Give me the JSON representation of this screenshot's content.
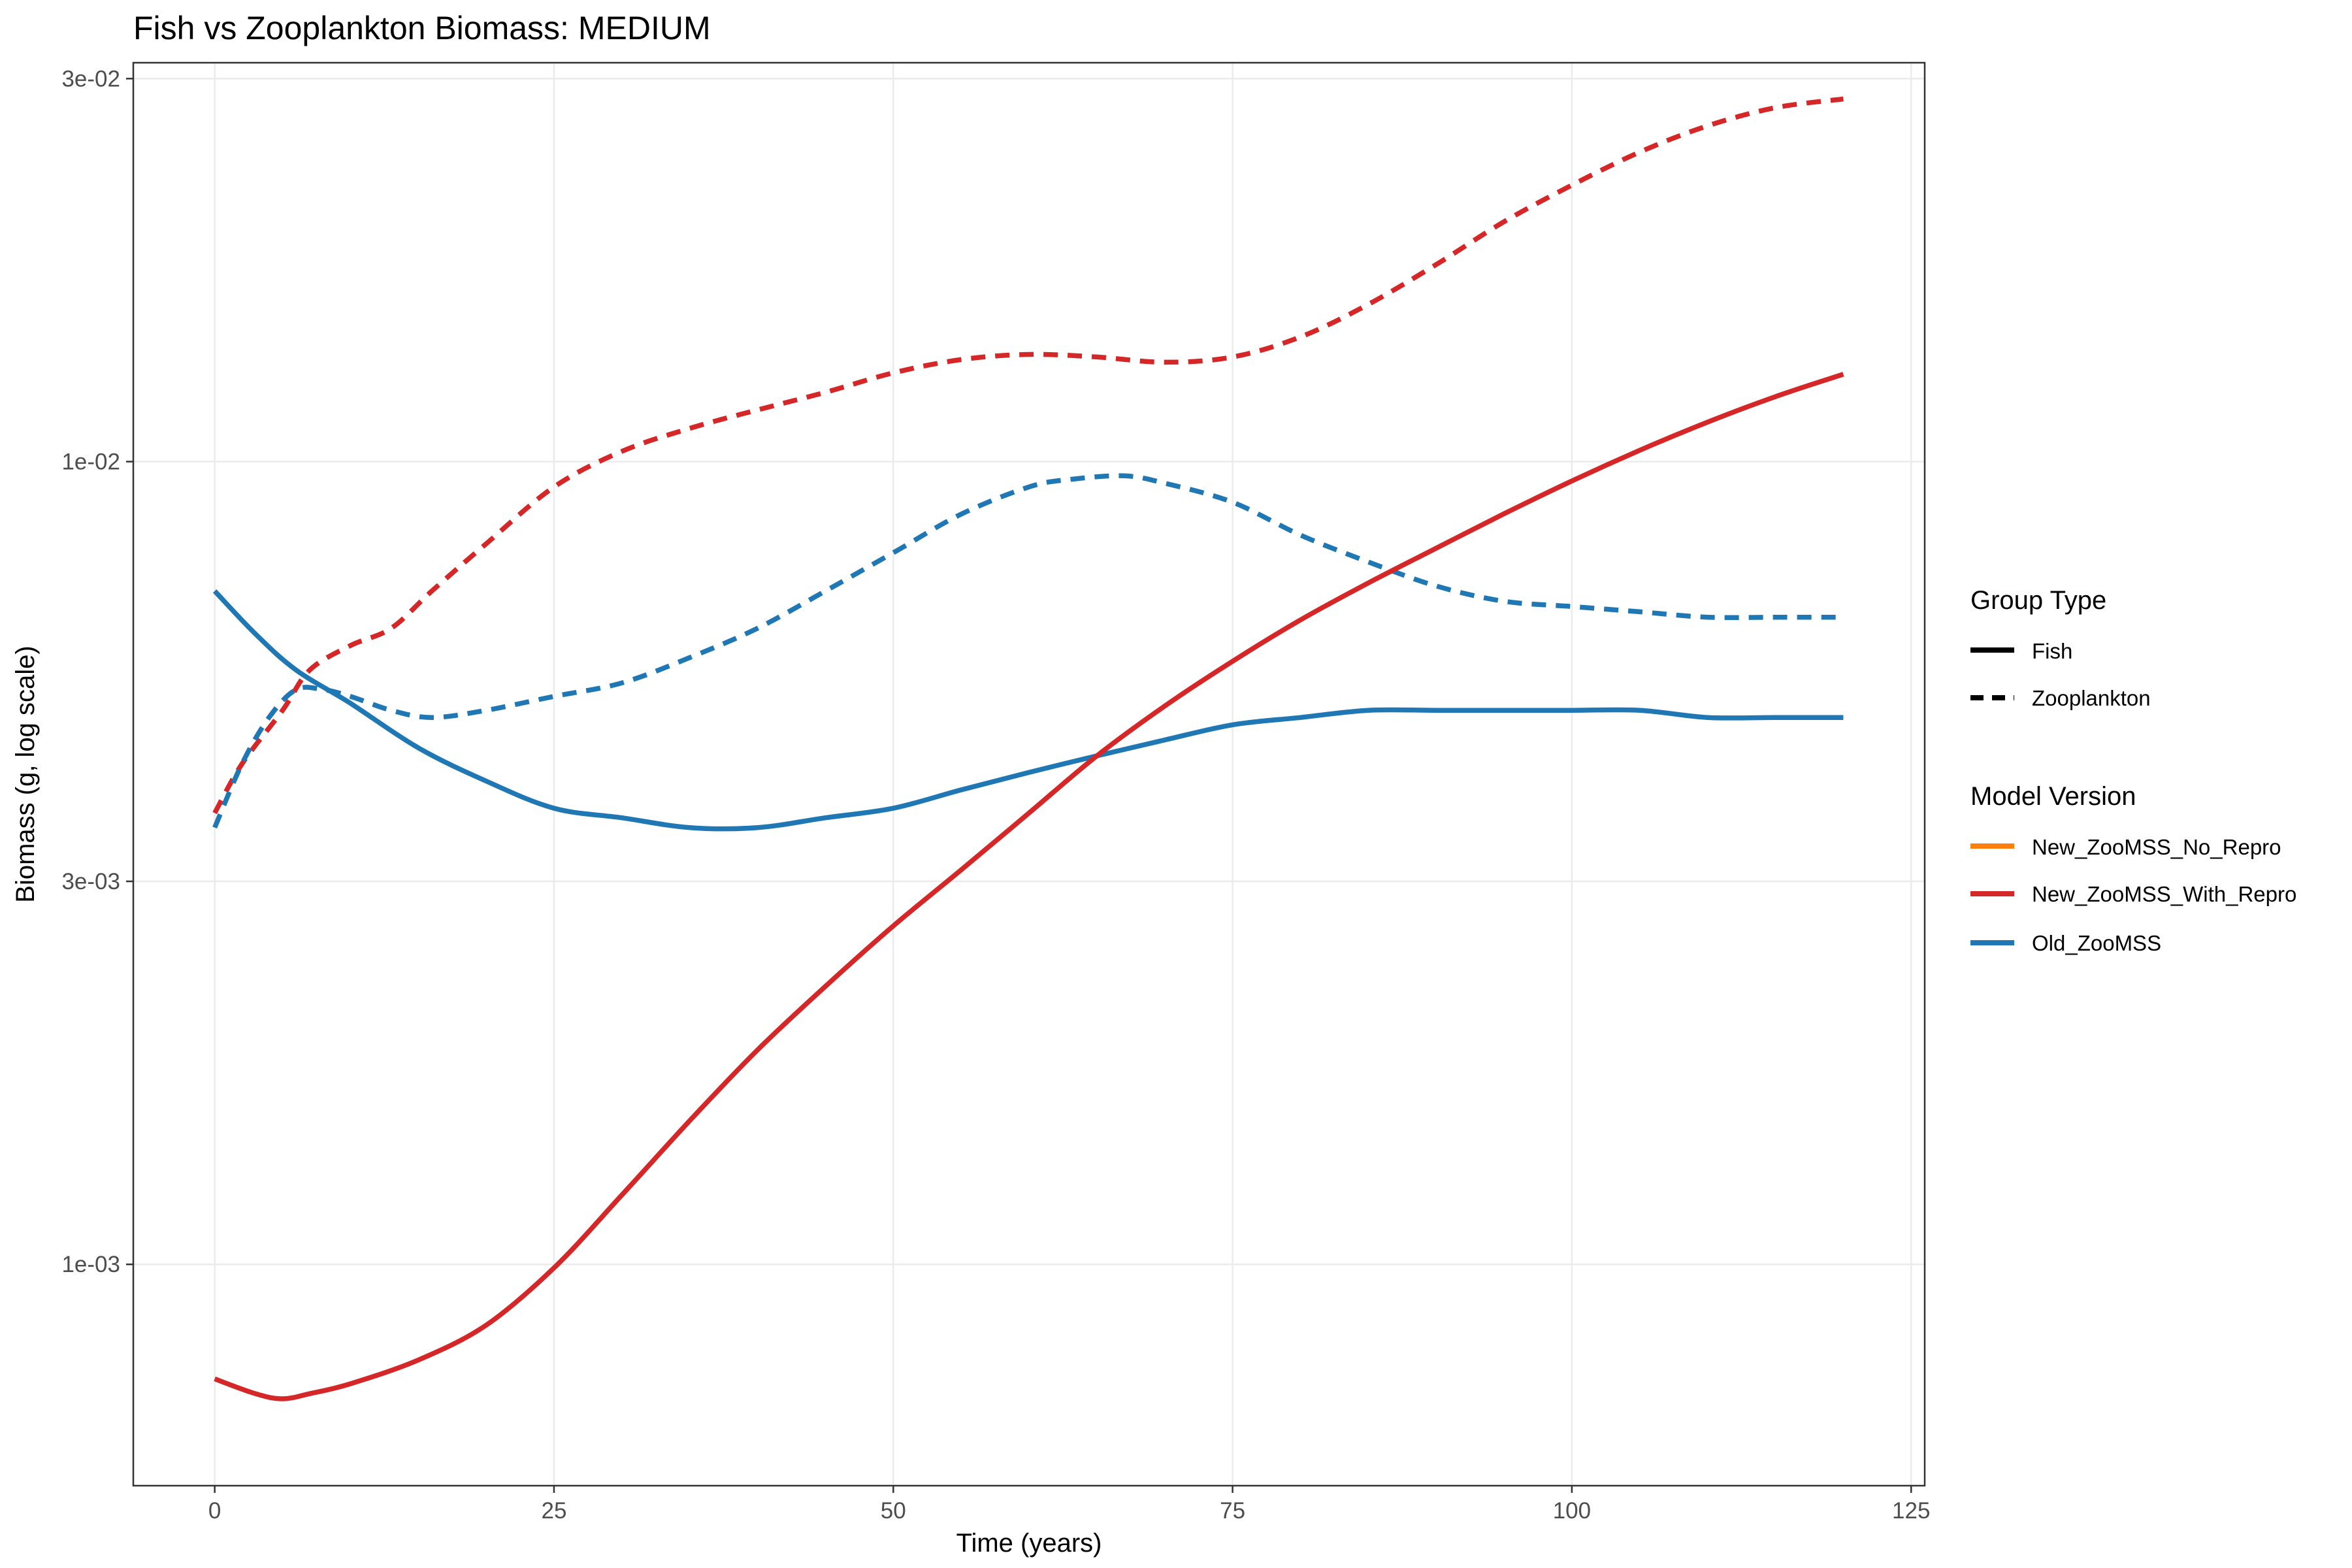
{
  "chart_data": {
    "type": "line",
    "title": "Fish vs Zooplankton Biomass: MEDIUM",
    "xlabel": "Time (years)",
    "ylabel": "Biomass (g, log scale)",
    "xlim": [
      -6,
      126
    ],
    "ylim": [
      0.00053,
      0.0314
    ],
    "y_scale": "log",
    "x_ticks": [
      0,
      25,
      50,
      75,
      100,
      125
    ],
    "x_tick_labels": [
      "0",
      "25",
      "50",
      "75",
      "100",
      "125"
    ],
    "y_ticks": [
      0.001,
      0.003,
      0.01,
      0.03
    ],
    "y_tick_labels": [
      "1e-03",
      "3e-03",
      "1e-02",
      "3e-02"
    ],
    "grid": true,
    "legend_position": "right",
    "legend": {
      "group_type": {
        "title": "Group Type",
        "items": [
          {
            "label": "Fish",
            "dash": "solid"
          },
          {
            "label": "Zooplankton",
            "dash": "dashed"
          }
        ]
      },
      "model_version": {
        "title": "Model Version",
        "items": [
          {
            "label": "New_ZooMSS_No_Repro",
            "color": "#ff7f0e"
          },
          {
            "label": "New_ZooMSS_With_Repro",
            "color": "#d62728"
          },
          {
            "label": "Old_ZooMSS",
            "color": "#1f77b4"
          }
        ]
      }
    },
    "series": [
      {
        "model": "New_ZooMSS_With_Repro",
        "group": "Zooplankton",
        "color": "#d62728",
        "dash": "dashed",
        "x": [
          0,
          2,
          5,
          7,
          10,
          13,
          16,
          20,
          25,
          30,
          35,
          40,
          45,
          50,
          55,
          60,
          65,
          70,
          75,
          80,
          85,
          90,
          95,
          100,
          105,
          110,
          115,
          120
        ],
        "y": [
          0.00365,
          0.0042,
          0.0049,
          0.0055,
          0.0059,
          0.0062,
          0.0069,
          0.0079,
          0.0093,
          0.0103,
          0.011,
          0.0116,
          0.0122,
          0.0129,
          0.0134,
          0.0136,
          0.0135,
          0.0133,
          0.0135,
          0.0143,
          0.0157,
          0.0176,
          0.0199,
          0.0221,
          0.0243,
          0.0262,
          0.0276,
          0.0283
        ]
      },
      {
        "model": "Old_ZooMSS",
        "group": "Zooplankton",
        "color": "#1f77b4",
        "dash": "dashed",
        "x": [
          0,
          2,
          4,
          6,
          8,
          10,
          13,
          16,
          20,
          25,
          30,
          35,
          40,
          45,
          50,
          55,
          60,
          63,
          67,
          70,
          75,
          80,
          85,
          90,
          95,
          100,
          105,
          110,
          115,
          120
        ],
        "y": [
          0.0035,
          0.0042,
          0.0048,
          0.0052,
          0.0052,
          0.0051,
          0.0049,
          0.0048,
          0.0049,
          0.0051,
          0.0053,
          0.0057,
          0.0062,
          0.0069,
          0.0077,
          0.0086,
          0.0093,
          0.0095,
          0.0096,
          0.0094,
          0.0089,
          0.0081,
          0.0075,
          0.007,
          0.0067,
          0.0066,
          0.0065,
          0.0064,
          0.0064,
          0.0064
        ]
      },
      {
        "model": "Old_ZooMSS",
        "group": "Fish",
        "color": "#1f77b4",
        "dash": "solid",
        "x": [
          0,
          3,
          6,
          10,
          15,
          20,
          25,
          30,
          35,
          40,
          45,
          50,
          55,
          60,
          65,
          70,
          75,
          80,
          85,
          90,
          95,
          100,
          105,
          110,
          115,
          120
        ],
        "y": [
          0.0069,
          0.0061,
          0.0055,
          0.005,
          0.0044,
          0.004,
          0.0037,
          0.0036,
          0.0035,
          0.0035,
          0.0036,
          0.0037,
          0.0039,
          0.0041,
          0.0043,
          0.0045,
          0.0047,
          0.0048,
          0.0049,
          0.0049,
          0.0049,
          0.0049,
          0.0049,
          0.0048,
          0.0048,
          0.0048
        ]
      },
      {
        "model": "New_ZooMSS_With_Repro",
        "group": "Fish",
        "color": "#d62728",
        "dash": "solid",
        "x": [
          0,
          3,
          5,
          7,
          10,
          15,
          20,
          25,
          30,
          35,
          40,
          45,
          50,
          55,
          60,
          65,
          70,
          75,
          80,
          85,
          90,
          95,
          100,
          105,
          110,
          115,
          120
        ],
        "y": [
          0.00072,
          0.00069,
          0.00068,
          0.00069,
          0.00071,
          0.00076,
          0.00084,
          0.00099,
          0.00122,
          0.00151,
          0.00185,
          0.00222,
          0.00264,
          0.0031,
          0.00365,
          0.0043,
          0.00496,
          0.00564,
          0.00635,
          0.00706,
          0.0078,
          0.00861,
          0.00946,
          0.01033,
          0.0112,
          0.01205,
          0.01285
        ]
      }
    ]
  }
}
